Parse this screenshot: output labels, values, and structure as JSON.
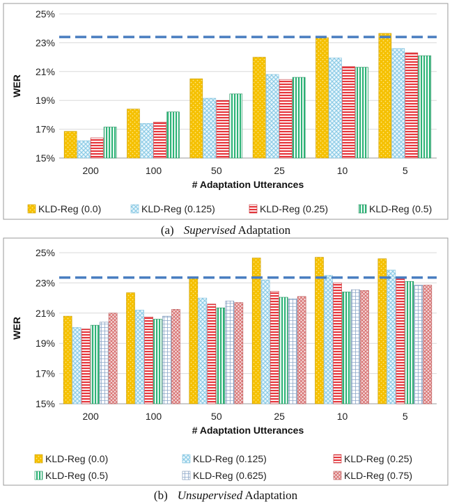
{
  "chart_data": [
    {
      "type": "bar",
      "caption_label": "(a)",
      "caption_em": "Supervised",
      "caption_rest": " Adaptation",
      "xlabel": "# Adaptation Utterances",
      "ylabel": "WER",
      "ylim": [
        15,
        25
      ],
      "yticks": [
        "15%",
        "17%",
        "19%",
        "21%",
        "23%",
        "25%"
      ],
      "categories": [
        "200",
        "100",
        "50",
        "25",
        "10",
        "5"
      ],
      "baseline": 23.4,
      "grid": true,
      "legend_position": "bottom",
      "series": [
        {
          "name": "KLD-Reg (0.0)",
          "values": [
            16.85,
            18.4,
            20.5,
            22.0,
            23.35,
            23.65
          ]
        },
        {
          "name": "KLD-Reg (0.125)",
          "values": [
            16.2,
            17.4,
            19.15,
            20.8,
            21.95,
            22.6
          ]
        },
        {
          "name": "KLD-Reg (0.25)",
          "values": [
            16.4,
            17.5,
            19.0,
            20.45,
            21.35,
            22.3
          ]
        },
        {
          "name": "KLD-Reg (0.5)",
          "values": [
            17.15,
            18.2,
            19.45,
            20.6,
            21.3,
            22.1
          ]
        }
      ]
    },
    {
      "type": "bar",
      "caption_label": "(b)",
      "caption_em": "Unsupervised",
      "caption_rest": " Adaptation",
      "xlabel": "# Adaptation Utterances",
      "ylabel": "WER",
      "ylim": [
        15,
        25
      ],
      "yticks": [
        "15%",
        "17%",
        "19%",
        "21%",
        "23%",
        "25%"
      ],
      "categories": [
        "200",
        "100",
        "50",
        "25",
        "10",
        "5"
      ],
      "baseline": 23.35,
      "grid": true,
      "legend_position": "bottom",
      "series": [
        {
          "name": "KLD-Reg (0.0)",
          "values": [
            20.8,
            22.35,
            23.4,
            24.65,
            24.7,
            24.6
          ]
        },
        {
          "name": "KLD-Reg (0.125)",
          "values": [
            20.05,
            21.2,
            22.0,
            23.2,
            23.5,
            23.85
          ]
        },
        {
          "name": "KLD-Reg (0.25)",
          "values": [
            19.95,
            20.75,
            21.6,
            22.45,
            23.0,
            23.4
          ]
        },
        {
          "name": "KLD-Reg (0.5)",
          "values": [
            20.2,
            20.6,
            21.35,
            22.05,
            22.4,
            23.1
          ]
        },
        {
          "name": "KLD-Reg (0.625)",
          "values": [
            20.4,
            20.8,
            21.8,
            21.95,
            22.55,
            22.85
          ]
        },
        {
          "name": "KLD-Reg (0.75)",
          "values": [
            21.0,
            21.25,
            21.7,
            22.1,
            22.5,
            22.85
          ]
        }
      ]
    }
  ],
  "colors": {
    "gold": "#f5c000",
    "cyan": "#9ed6ee",
    "red": "#e6353b",
    "green": "#2db377",
    "slate": "#8aa6c8",
    "rose": "#d86a6a",
    "baseline": "#4a7ec0",
    "grid": "#d9d9d9"
  }
}
